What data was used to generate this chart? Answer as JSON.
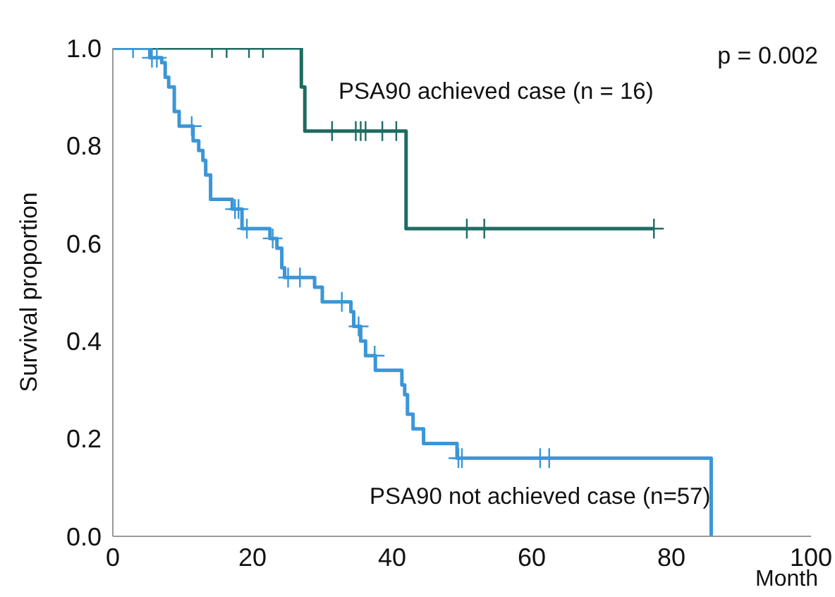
{
  "chart_data": {
    "type": "step",
    "xlabel": "Month",
    "ylabel": "Survival proportion",
    "annotations": [
      "p = 0.002"
    ],
    "xlim": [
      0,
      100
    ],
    "xticks": [
      0,
      20,
      40,
      60,
      80,
      100
    ],
    "ylim": [
      0,
      1
    ],
    "yticks": [
      {
        "value": 0,
        "label": "0.0"
      },
      {
        "value": 0.2,
        "label": "0.2"
      },
      {
        "value": 0.4,
        "label": "0.4"
      },
      {
        "value": 0.6,
        "label": "0.6"
      },
      {
        "value": 0.8,
        "label": "0.8"
      },
      {
        "value": 1,
        "label": "1.0"
      }
    ],
    "grid": false,
    "legend": false,
    "series": [
      {
        "name": "PSA90 achieved case (n = 16)",
        "marker": "none",
        "color": "#1f6b63",
        "x": [
          0,
          27.0,
          27.5,
          42.0,
          77.5
        ],
        "values": [
          1,
          0.92,
          0.83,
          0.63,
          0.63
        ]
      },
      {
        "name": "PSA90 not achieved case (n=57)",
        "marker": "none",
        "color": "#3a96d8",
        "x": [
          0,
          5.3,
          7.0,
          7.5,
          8.0,
          8.8,
          9.5,
          11.5,
          12.3,
          12.9,
          13.3,
          14.0,
          17.1,
          18.5,
          22.5,
          23.5,
          24.2,
          24.6,
          28.9,
          30.0,
          34.1,
          34.5,
          35.5,
          36.2,
          37.6,
          41.4,
          41.8,
          42.2,
          43.0,
          44.5,
          49.3,
          85.7
        ],
        "values": [
          1,
          0.98,
          0.97,
          0.94,
          0.92,
          0.87,
          0.84,
          0.81,
          0.79,
          0.77,
          0.74,
          0.69,
          0.67,
          0.63,
          0.61,
          0.59,
          0.55,
          0.53,
          0.51,
          0.48,
          0.46,
          0.43,
          0.4,
          0.37,
          0.34,
          0.31,
          0.29,
          0.25,
          0.22,
          0.19,
          0.16,
          0
        ]
      },
      {
        "type": "scatter",
        "marker": "cross",
        "color": "#1f6b63",
        "x": [
          14.2,
          16.3,
          19.5,
          21.5,
          31.4,
          34.8,
          35.5,
          36.2,
          38.6,
          40.6,
          50.7,
          53.2,
          77.5
        ],
        "values": [
          1,
          1,
          1,
          1,
          0.83,
          0.83,
          0.83,
          0.83,
          0.83,
          0.83,
          0.63,
          0.63,
          0.63
        ]
      },
      {
        "type": "scatter",
        "marker": "cross",
        "color": "#3a96d8",
        "x": [
          2.9,
          5.6,
          6.3,
          11.3,
          17.5,
          18.0,
          19.2,
          22.9,
          25.1,
          26.8,
          32.8,
          35.2,
          37.5,
          49.5,
          50.0,
          61.2,
          62.5
        ],
        "values": [
          1,
          0.98,
          0.98,
          0.84,
          0.67,
          0.67,
          0.63,
          0.61,
          0.53,
          0.53,
          0.48,
          0.43,
          0.37,
          0.16,
          0.16,
          0.16,
          0.16
        ]
      }
    ]
  }
}
